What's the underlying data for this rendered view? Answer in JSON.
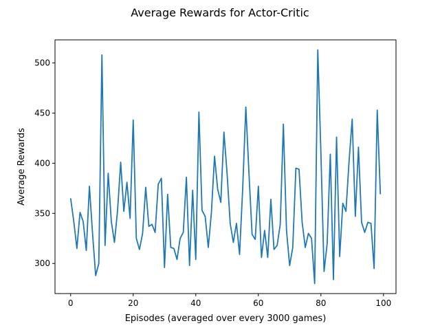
{
  "chart_data": {
    "type": "line",
    "title": "Average Rewards for Actor-Critic",
    "xlabel": "Episodes (averaged over every 3000 games)",
    "ylabel": "Average Rewards",
    "xlim": [
      -5,
      104
    ],
    "ylim": [
      270,
      523
    ],
    "xticks": [
      0,
      20,
      40,
      60,
      80,
      100
    ],
    "yticks": [
      300,
      350,
      400,
      450,
      500
    ],
    "grid": false,
    "legend": "none",
    "series_color": "#1f77b4",
    "series": [
      {
        "x": [
          0,
          1,
          2,
          3,
          4,
          5,
          6,
          7,
          8,
          9,
          10,
          11,
          12,
          13,
          14,
          15,
          16,
          17,
          18,
          19,
          20,
          21,
          22,
          23,
          24,
          25,
          26,
          27,
          28,
          29,
          30,
          31,
          32,
          33,
          34,
          35,
          36,
          37,
          38,
          39,
          40,
          41,
          42,
          43,
          44,
          45,
          46,
          47,
          48,
          49,
          50,
          51,
          52,
          53,
          54,
          55,
          56,
          57,
          58,
          59,
          60,
          61,
          62,
          63,
          64,
          65,
          66,
          67,
          68,
          69,
          70,
          71,
          72,
          73,
          74,
          75,
          76,
          77,
          78,
          79,
          80,
          81,
          82,
          83,
          84,
          85,
          86,
          87,
          88,
          89,
          90,
          91,
          92,
          93,
          94,
          95,
          96,
          97,
          98,
          99
        ],
        "values": [
          365,
          342,
          315,
          351,
          342,
          313,
          377,
          330,
          288,
          300,
          508,
          318,
          390,
          342,
          321,
          353,
          401,
          352,
          381,
          345,
          443,
          325,
          314,
          330,
          376,
          337,
          339,
          331,
          379,
          385,
          296,
          369,
          316,
          315,
          304,
          325,
          331,
          386,
          298,
          373,
          304,
          451,
          353,
          347,
          316,
          351,
          407,
          374,
          361,
          431,
          390,
          340,
          321,
          340,
          309,
          375,
          456,
          390,
          329,
          324,
          377,
          306,
          333,
          306,
          364,
          314,
          318,
          339,
          439,
          333,
          298,
          316,
          395,
          394,
          341,
          316,
          330,
          325,
          280,
          513,
          410,
          292,
          320,
          409,
          284,
          426,
          307,
          360,
          352,
          402,
          444,
          347,
          416,
          341,
          331,
          341,
          340,
          295,
          453,
          369
        ]
      }
    ]
  }
}
